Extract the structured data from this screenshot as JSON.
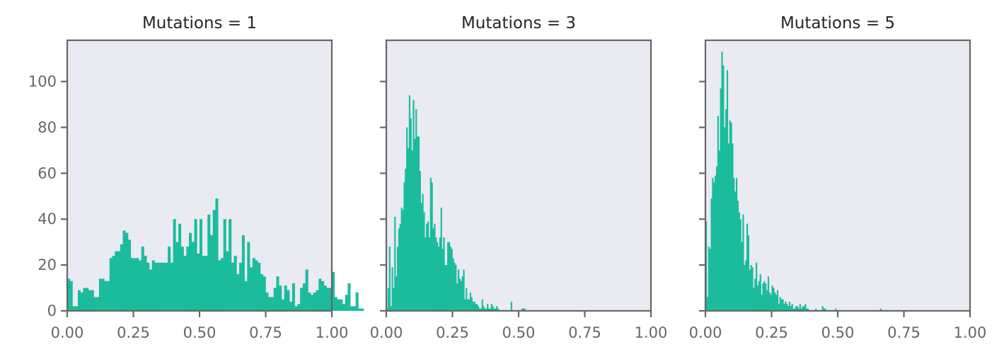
{
  "figure": {
    "background": "#ffffff",
    "plot_background": "#eaeaf2",
    "bar_color": "#1abc9c",
    "spine_color": "#666666",
    "tick_color": "#666666",
    "title_color": "#262626"
  },
  "chart_data": [
    {
      "type": "bar",
      "title": "Mutations = 1",
      "xlabel": "",
      "ylabel": "",
      "xlim": [
        0,
        1
      ],
      "ylim": [
        0,
        118
      ],
      "bin_width": 0.01,
      "x_ticks": [
        "0.00",
        "0.25",
        "0.50",
        "0.75",
        "1.00"
      ],
      "y_ticks": [
        "0",
        "20",
        "40",
        "60",
        "80",
        "100"
      ],
      "bins_start": 0.0,
      "values": [
        14,
        13,
        2,
        2,
        9,
        8,
        10,
        10,
        9,
        9,
        6,
        6,
        14,
        14,
        13,
        13,
        23,
        24,
        26,
        26,
        29,
        35,
        34,
        31,
        23,
        23,
        23,
        22,
        28,
        24,
        21,
        18,
        22,
        21,
        21,
        21,
        21,
        21,
        28,
        21,
        40,
        30,
        38,
        28,
        24,
        28,
        34,
        30,
        40,
        25,
        40,
        24,
        24,
        42,
        33,
        44,
        49,
        22,
        23,
        40,
        26,
        40,
        21,
        24,
        16,
        21,
        33,
        13,
        30,
        19,
        23,
        22,
        21,
        16,
        15,
        8,
        6,
        6,
        10,
        15,
        11,
        5,
        11,
        9,
        4,
        12,
        2,
        3,
        10,
        12,
        18,
        8,
        7,
        8,
        9,
        14,
        13,
        11,
        10,
        10,
        17,
        6,
        5,
        5,
        3,
        7,
        12,
        2,
        2,
        8,
        1,
        1
      ]
    },
    {
      "type": "bar",
      "title": "Mutations = 3",
      "xlabel": "",
      "ylabel": "",
      "xlim": [
        0,
        1
      ],
      "ylim": [
        0,
        118
      ],
      "bin_width": 0.005,
      "x_ticks": [
        "0.00",
        "0.25",
        "0.50",
        "0.75",
        "1.00"
      ],
      "y_ticks": [
        "0",
        "20",
        "40",
        "60",
        "80",
        "100"
      ],
      "bins_start": 0.0,
      "values": [
        1,
        10,
        28,
        2,
        19,
        10,
        41,
        15,
        28,
        36,
        38,
        45,
        44,
        56,
        62,
        80,
        71,
        94,
        84,
        70,
        92,
        75,
        88,
        76,
        76,
        61,
        47,
        51,
        43,
        32,
        38,
        39,
        32,
        58,
        56,
        36,
        38,
        32,
        30,
        28,
        32,
        45,
        27,
        32,
        20,
        20,
        30,
        30,
        28,
        27,
        23,
        21,
        20,
        12,
        18,
        14,
        13,
        15,
        18,
        5,
        10,
        5,
        5,
        8,
        6,
        4,
        4,
        3,
        3,
        2,
        1,
        1,
        5,
        2,
        1,
        1,
        3,
        1,
        1,
        3,
        2,
        1,
        1,
        2,
        1,
        0,
        0,
        0,
        0,
        0,
        0,
        0,
        0,
        0,
        4,
        0,
        0,
        0,
        0,
        0,
        0,
        0,
        1,
        1,
        1
      ]
    },
    {
      "type": "bar",
      "title": "Mutations = 5",
      "xlabel": "",
      "ylabel": "",
      "xlim": [
        0,
        1
      ],
      "ylim": [
        0,
        118
      ],
      "bin_width": 0.005,
      "x_ticks": [
        "0.00",
        "0.25",
        "0.50",
        "0.75",
        "1.00"
      ],
      "y_ticks": [
        "0",
        "20",
        "40",
        "60",
        "80",
        "100"
      ],
      "bins_start": 0.0,
      "values": [
        39,
        6,
        28,
        27,
        49,
        58,
        56,
        59,
        63,
        85,
        70,
        97,
        113,
        107,
        80,
        88,
        105,
        73,
        83,
        82,
        73,
        58,
        52,
        58,
        48,
        43,
        40,
        30,
        42,
        20,
        22,
        38,
        33,
        18,
        20,
        19,
        10,
        14,
        21,
        11,
        13,
        16,
        7,
        12,
        13,
        12,
        9,
        15,
        8,
        7,
        11,
        10,
        8,
        7,
        9,
        3,
        6,
        5,
        5,
        3,
        4,
        3,
        2,
        4,
        2,
        3,
        1,
        1,
        2,
        2,
        1,
        3,
        1,
        2,
        2,
        3,
        1,
        1,
        0,
        0,
        0,
        0,
        0,
        1,
        0,
        0,
        0,
        0,
        2,
        1,
        1,
        0,
        0,
        0,
        0,
        0,
        0,
        0,
        1,
        0,
        0,
        0,
        0,
        0,
        0,
        0,
        0,
        0,
        0,
        0,
        0,
        0,
        0,
        0,
        0,
        0,
        0,
        0,
        0,
        0,
        0,
        0,
        0,
        0,
        0,
        0,
        0,
        0,
        0,
        0,
        0,
        0,
        1
      ]
    }
  ]
}
